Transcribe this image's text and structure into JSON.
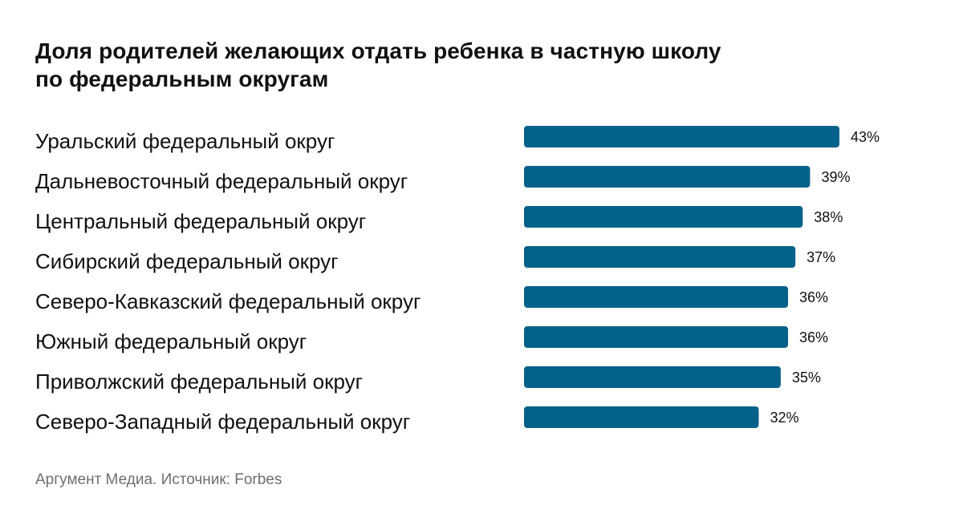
{
  "header": {
    "title_line1": "Доля родителей желающих отдать ребенка в частную школу",
    "title_line2": "по федеральным округам"
  },
  "footer": {
    "source": "Аргумент Медиа. Источник: Forbes"
  },
  "colors": {
    "bar": "#04628A",
    "text": "#111111",
    "source": "#6f6f6f"
  },
  "chart_data": {
    "type": "bar",
    "orientation": "horizontal",
    "title": "Доля родителей желающих отдать ребенка в частную школу по федеральным округам",
    "categories": [
      "Уральский федеральный округ",
      "Дальневосточный федеральный округ",
      "Центральный федеральный округ",
      "Сибирский федеральный округ",
      "Северо-Кавказский федеральный округ",
      "Южный федеральный округ",
      "Приволжский федеральный округ",
      "Северо-Западный федеральный округ"
    ],
    "values": [
      43,
      39,
      38,
      37,
      36,
      36,
      35,
      32
    ],
    "value_labels": [
      "43%",
      "39%",
      "38%",
      "37%",
      "36%",
      "36%",
      "35%",
      "32%"
    ],
    "unit": "%",
    "xlabel": "",
    "ylabel": "",
    "xlim": [
      0,
      43
    ],
    "grid": false,
    "legend": "none"
  }
}
